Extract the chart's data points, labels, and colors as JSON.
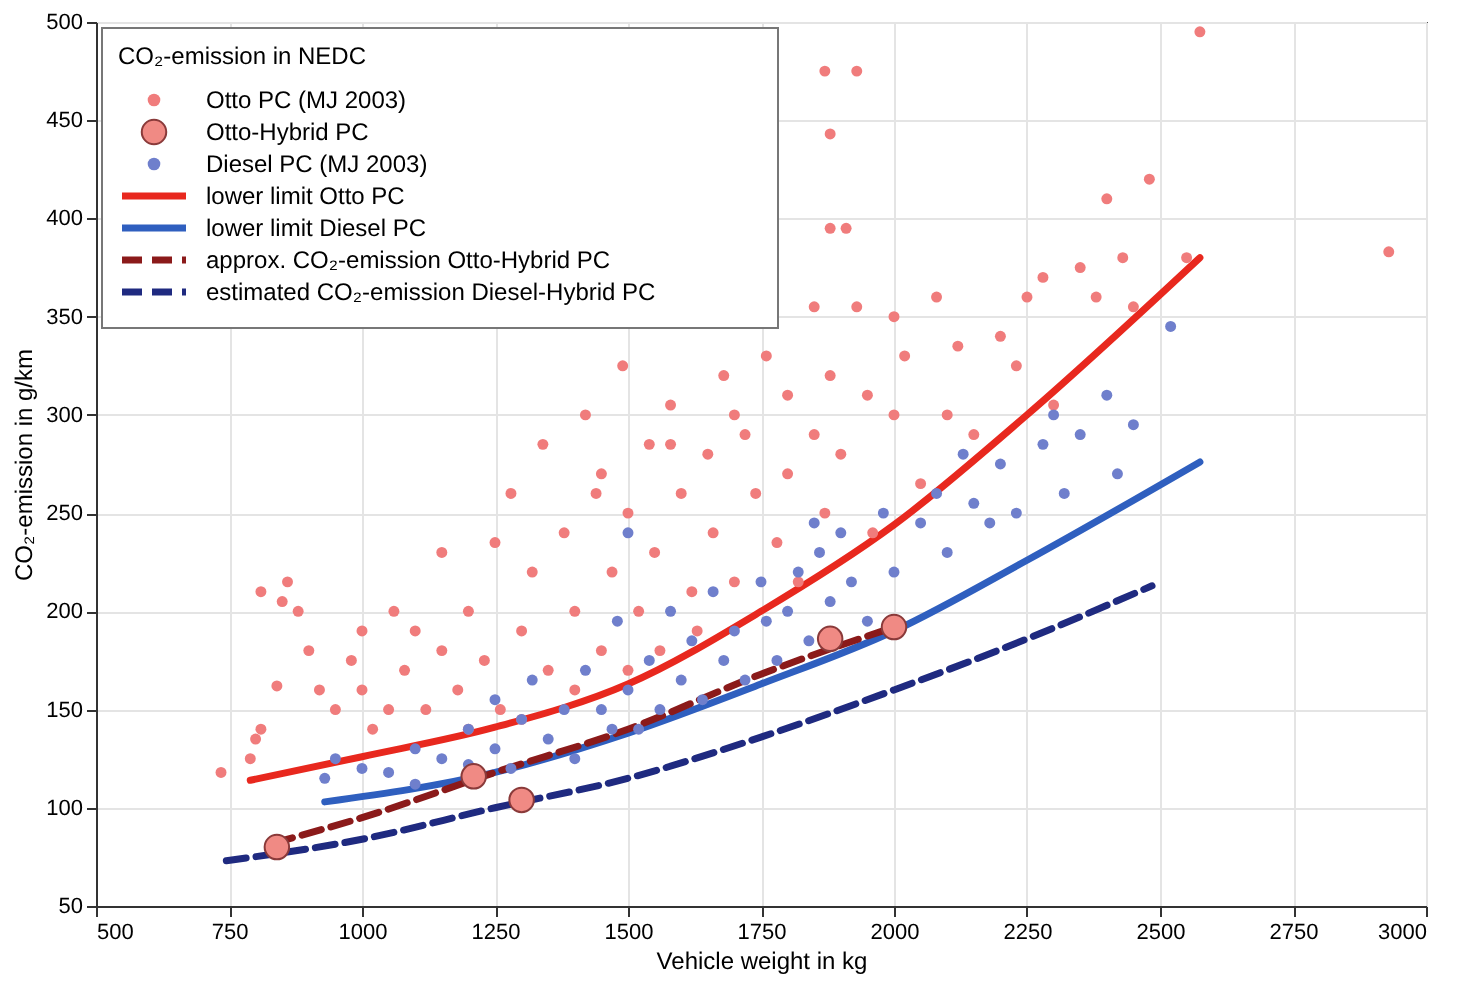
{
  "chart_data": {
    "type": "scatter",
    "xlabel": "Vehicle weight in kg",
    "ylabel": "CO₂-emission in g/km",
    "legend_title": "CO₂-emission in NEDC",
    "legend": "top left",
    "grid": true,
    "xlim": [
      500,
      3000
    ],
    "xticks": [
      500,
      750,
      1000,
      1250,
      1500,
      1750,
      2000,
      2250,
      2500,
      2750,
      3000
    ],
    "ylim": [
      50,
      500
    ],
    "yticks": [
      50,
      100,
      150,
      200,
      250,
      300,
      350,
      400,
      450,
      500
    ],
    "series": [
      {
        "name": "Otto PC (MJ 2003)",
        "marker": "circle",
        "color": "#f07c7c",
        "x": [
          735,
          790,
          800,
          810,
          840,
          810,
          850,
          860,
          880,
          900,
          920,
          950,
          980,
          1000,
          1000,
          1020,
          1050,
          1060,
          1080,
          1100,
          1120,
          1150,
          1150,
          1180,
          1200,
          1200,
          1230,
          1250,
          1260,
          1280,
          1300,
          1300,
          1320,
          1340,
          1350,
          1380,
          1400,
          1400,
          1420,
          1440,
          1450,
          1470,
          1490,
          1500,
          1500,
          1520,
          1540,
          1550,
          1560,
          1580,
          1600,
          1620,
          1630,
          1650,
          1660,
          1680,
          1700,
          1720,
          1740,
          1760,
          1780,
          1800,
          1800,
          1820,
          1850,
          1850,
          1870,
          1880,
          1900,
          1930,
          1950,
          1960,
          2000,
          2000,
          2020,
          2050,
          2080,
          2100,
          2120,
          2150,
          2200,
          2230,
          2250,
          2280,
          2300,
          2350,
          2380,
          2400,
          2430,
          2450,
          2480,
          2550,
          2575,
          2930,
          1870,
          1930,
          1880,
          1880,
          1910,
          1580,
          1450,
          1700
        ],
        "values": [
          118,
          125,
          135,
          140,
          162,
          210,
          205,
          215,
          200,
          180,
          160,
          150,
          175,
          190,
          160,
          140,
          150,
          200,
          170,
          190,
          150,
          180,
          230,
          160,
          200,
          140,
          175,
          235,
          150,
          260,
          190,
          145,
          220,
          285,
          170,
          240,
          200,
          160,
          300,
          260,
          180,
          220,
          325,
          250,
          170,
          200,
          285,
          230,
          180,
          305,
          260,
          210,
          190,
          280,
          240,
          320,
          215,
          290,
          260,
          330,
          235,
          270,
          310,
          215,
          355,
          290,
          250,
          320,
          280,
          355,
          310,
          240,
          350,
          300,
          330,
          265,
          360,
          300,
          335,
          290,
          340,
          325,
          360,
          370,
          305,
          375,
          360,
          410,
          380,
          355,
          420,
          380,
          495,
          383,
          475,
          475,
          443,
          395,
          395,
          285,
          270,
          300
        ]
      },
      {
        "name": "Otto-Hybrid PC",
        "marker": "circle",
        "color": "#f08a84",
        "x": [
          840,
          1210,
          1300,
          1880,
          2000
        ],
        "values": [
          80,
          116,
          104,
          186,
          192
        ]
      },
      {
        "name": "Diesel PC (MJ 2003)",
        "marker": "circle",
        "color": "#6f7fcc",
        "x": [
          930,
          950,
          1000,
          1050,
          1100,
          1100,
          1150,
          1200,
          1200,
          1250,
          1250,
          1280,
          1300,
          1320,
          1350,
          1380,
          1400,
          1420,
          1450,
          1470,
          1480,
          1500,
          1520,
          1540,
          1560,
          1580,
          1600,
          1620,
          1640,
          1660,
          1680,
          1700,
          1720,
          1750,
          1760,
          1780,
          1800,
          1820,
          1840,
          1860,
          1880,
          1900,
          1920,
          1950,
          1980,
          2000,
          2050,
          2080,
          2100,
          2130,
          2150,
          2180,
          2200,
          2230,
          2280,
          2300,
          2320,
          2350,
          2400,
          2420,
          2450,
          2520,
          1500,
          1850
        ],
        "values": [
          115,
          125,
          120,
          118,
          130,
          112,
          125,
          140,
          122,
          130,
          155,
          120,
          145,
          165,
          135,
          150,
          125,
          170,
          150,
          140,
          195,
          160,
          140,
          175,
          150,
          200,
          165,
          185,
          155,
          210,
          175,
          190,
          165,
          215,
          195,
          175,
          200,
          220,
          185,
          230,
          205,
          240,
          215,
          195,
          250,
          220,
          245,
          260,
          230,
          280,
          255,
          245,
          275,
          250,
          285,
          300,
          260,
          290,
          310,
          270,
          295,
          345,
          240,
          245
        ]
      },
      {
        "name": "lower limit Otto PC",
        "type": "line",
        "line_style": "solid",
        "color": "#e8281e",
        "x": [
          790,
          1000,
          1250,
          1500,
          1750,
          2000,
          2250,
          2575
        ],
        "values": [
          114,
          126,
          141,
          163,
          200,
          244,
          300,
          380
        ]
      },
      {
        "name": "lower limit Diesel PC",
        "type": "line",
        "line_style": "solid",
        "color": "#2f5fbf",
        "x": [
          930,
          1250,
          1500,
          1750,
          2000,
          2250,
          2575
        ],
        "values": [
          103,
          118,
          138,
          163,
          190,
          226,
          276
        ]
      },
      {
        "name": "approx. CO₂-emission Otto-Hybrid PC",
        "type": "line",
        "line_style": "dashed",
        "color": "#8b1a1a",
        "x": [
          833,
          1000,
          1250,
          1500,
          1750,
          2000
        ],
        "values": [
          82,
          95,
          118,
          140,
          168,
          192
        ]
      },
      {
        "name": "estimated CO₂-emission Diesel-Hybrid PC",
        "type": "line",
        "line_style": "dashed",
        "color": "#1f2a80",
        "x": [
          745,
          1000,
          1250,
          1500,
          1750,
          2000,
          2250,
          2485
        ],
        "values": [
          73,
          84,
          100,
          115,
          136,
          160,
          186,
          213
        ]
      }
    ]
  }
}
